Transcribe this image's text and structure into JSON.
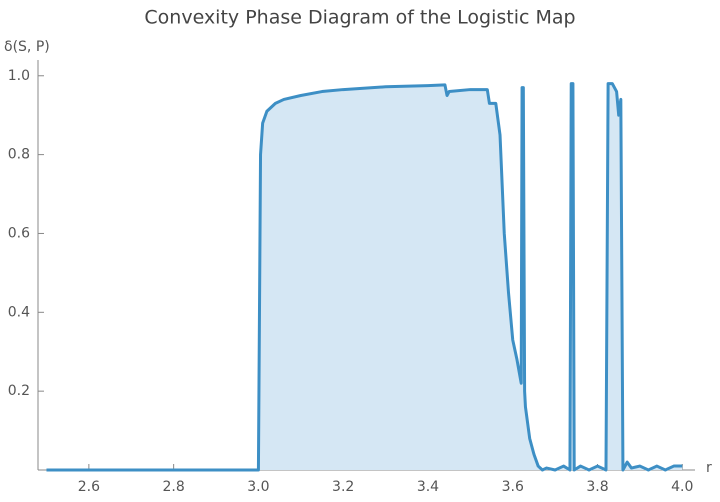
{
  "chart_data": {
    "type": "area",
    "title": "Convexity Phase Diagram of the Logistic Map",
    "x_label": "r",
    "y_label": "δ(S, P)",
    "xlim": [
      2.48,
      4.03
    ],
    "ylim": [
      0,
      1.04
    ],
    "xticks": [
      2.6,
      2.8,
      {
        "value": 3,
        "label": "3.0"
      },
      3.2,
      3.4,
      3.6,
      3.8,
      {
        "value": 4,
        "label": "4.0"
      }
    ],
    "yticks": [
      0.2,
      0.4,
      0.6,
      0.8,
      {
        "value": 1,
        "label": "1.0"
      }
    ],
    "color": "#3d8fc5",
    "fill_color": "#d5e7f4",
    "x": [
      2.5,
      2.995,
      3.0,
      3.005,
      3.01,
      3.02,
      3.04,
      3.06,
      3.1,
      3.15,
      3.2,
      3.3,
      3.4,
      3.44,
      3.445,
      3.45,
      3.5,
      3.54,
      3.545,
      3.56,
      3.57,
      3.58,
      3.59,
      3.6,
      3.61,
      3.615,
      3.62,
      3.622,
      3.625,
      3.628,
      3.63,
      3.64,
      3.65,
      3.66,
      3.67,
      3.68,
      3.7,
      3.72,
      3.735,
      3.738,
      3.742,
      3.745,
      3.76,
      3.78,
      3.8,
      3.82,
      3.825,
      3.835,
      3.845,
      3.85,
      3.855,
      3.86,
      3.87,
      3.88,
      3.9,
      3.92,
      3.94,
      3.96,
      3.98,
      4.0
    ],
    "values": [
      0,
      0,
      0,
      0.8,
      0.88,
      0.91,
      0.93,
      0.94,
      0.95,
      0.96,
      0.965,
      0.972,
      0.975,
      0.977,
      0.95,
      0.96,
      0.965,
      0.965,
      0.93,
      0.93,
      0.85,
      0.6,
      0.45,
      0.33,
      0.28,
      0.25,
      0.22,
      0.97,
      0.97,
      0.2,
      0.16,
      0.08,
      0.04,
      0.01,
      0,
      0.005,
      0,
      0.01,
      0,
      0.98,
      0.98,
      0,
      0.01,
      0,
      0.01,
      0,
      0.98,
      0.98,
      0.96,
      0.9,
      0.94,
      0,
      0.02,
      0.005,
      0.01,
      0,
      0.01,
      0,
      0.01,
      0.01
    ]
  }
}
